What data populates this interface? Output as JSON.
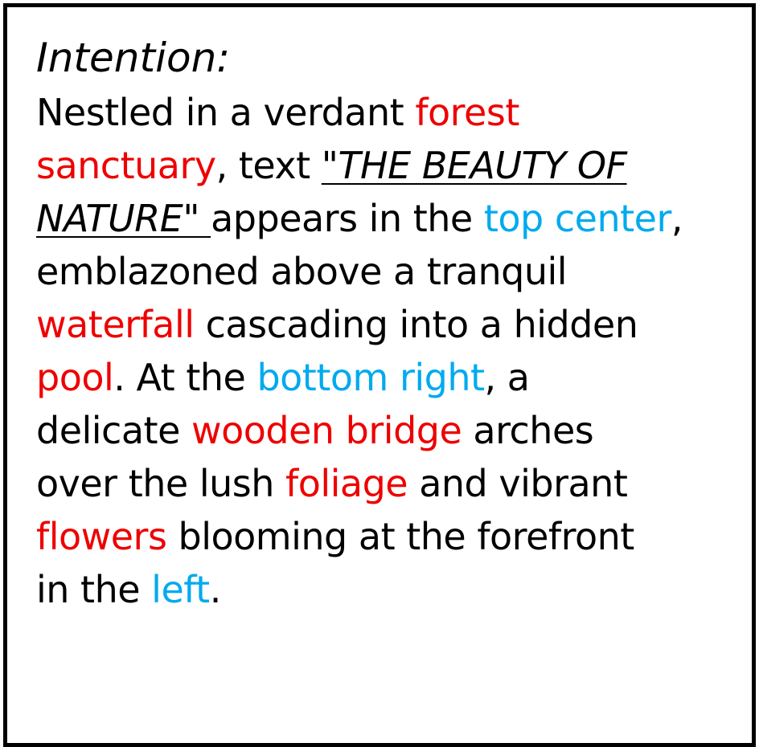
{
  "heading": "Intention:",
  "colors": {
    "object": "#ee0000",
    "position": "#00aaee",
    "text": "#000000"
  },
  "lines": [
    [
      {
        "text": "Nestled in a verdant ",
        "style": "plain"
      },
      {
        "text": "forest",
        "style": "object"
      }
    ],
    [
      {
        "text": "sanctuary",
        "style": "object"
      },
      {
        "text": ", text ",
        "style": "plain"
      },
      {
        "text": "\"THE BEAUTY OF",
        "style": "quote"
      }
    ],
    [
      {
        "text": "NATURE\" ",
        "style": "quote"
      },
      {
        "text": "appears in the ",
        "style": "plain"
      },
      {
        "text": "top center",
        "style": "position"
      },
      {
        "text": ",",
        "style": "plain"
      }
    ],
    [
      {
        "text": "emblazoned above a tranquil",
        "style": "plain"
      }
    ],
    [
      {
        "text": "waterfall",
        "style": "object"
      },
      {
        "text": " cascading into a hidden",
        "style": "plain"
      }
    ],
    [
      {
        "text": "pool",
        "style": "object"
      },
      {
        "text": ". At the ",
        "style": "plain"
      },
      {
        "text": "bottom right",
        "style": "position"
      },
      {
        "text": ", a",
        "style": "plain"
      }
    ],
    [
      {
        "text": "delicate ",
        "style": "plain"
      },
      {
        "text": "wooden bridge",
        "style": "object"
      },
      {
        "text": " arches",
        "style": "plain"
      }
    ],
    [
      {
        "text": "over the lush ",
        "style": "plain"
      },
      {
        "text": "foliage",
        "style": "object"
      },
      {
        "text": " and vibrant",
        "style": "plain"
      }
    ],
    [
      {
        "text": "flowers",
        "style": "object"
      },
      {
        "text": " blooming at the forefront",
        "style": "plain"
      }
    ],
    [
      {
        "text": "in the ",
        "style": "plain"
      },
      {
        "text": "left",
        "style": "position"
      },
      {
        "text": ".",
        "style": "plain"
      }
    ]
  ]
}
